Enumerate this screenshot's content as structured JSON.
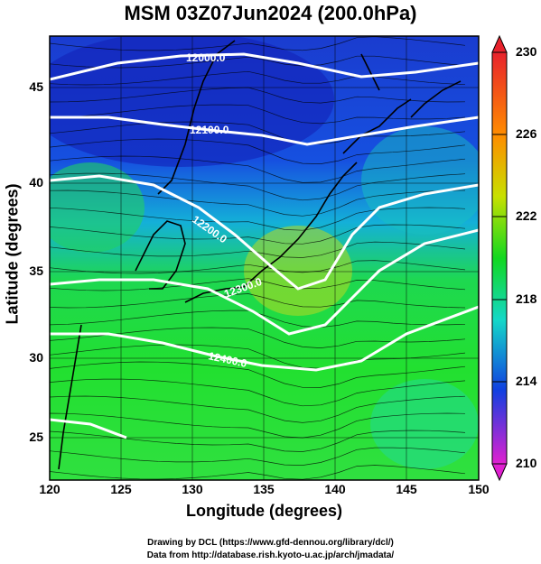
{
  "title": "MSM 03Z07Jun2024 (200.0hPa)",
  "map": {
    "xlabel": "Longitude (degrees)",
    "ylabel": "Latitude  (degrees)",
    "lon_range": [
      120,
      150
    ],
    "lat_range": [
      22.5,
      48
    ],
    "lon_ticks": [
      "120",
      "125",
      "130",
      "135",
      "140",
      "145",
      "150"
    ],
    "lat_ticks": [
      "25",
      "30",
      "35",
      "40",
      "45"
    ],
    "grid": true,
    "contours": [
      {
        "label": "12000.0"
      },
      {
        "label": "12100.0"
      },
      {
        "label": "12200.0"
      },
      {
        "label": "12300.0"
      },
      {
        "label": "12400.0"
      }
    ]
  },
  "colorbar": {
    "min": 210,
    "max": 230,
    "ticks": [
      "230",
      "226",
      "222",
      "218",
      "214",
      "210"
    ],
    "colors": {
      "top": "#e8222c",
      "high": "#ff8c00",
      "mid_high": "#c8e000",
      "mid": "#12d820",
      "mid_low": "#14d8c8",
      "low": "#1040e0",
      "bottom": "#e020d0"
    }
  },
  "credits": {
    "line1": "Drawing by DCL (https://www.gfd-dennou.org/library/dcl/)",
    "line2": "Data from http://database.rish.kyoto-u.ac.jp/arch/jmadata/"
  }
}
